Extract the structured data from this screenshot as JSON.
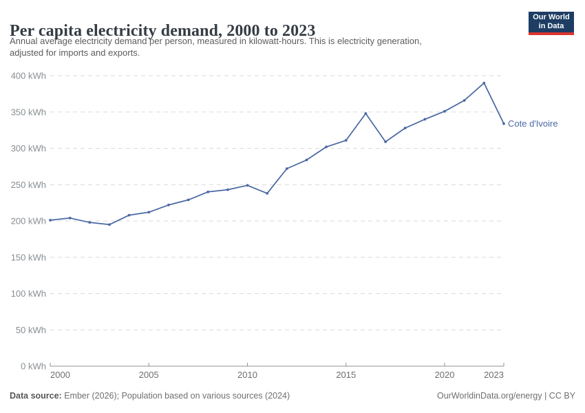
{
  "header": {
    "title": "Per capita electricity demand, 2000 to 2023",
    "subtitle_lines": [
      "Annual average electricity demand per person, measured in kilowatt-hours. This is electricity generation,",
      "adjusted for imports and exports."
    ],
    "logo": {
      "line1": "Our World",
      "line2": "in Data",
      "bg_color": "#1d3d63",
      "accent_color": "#dc3530"
    }
  },
  "chart_data": {
    "type": "line",
    "title": "Per capita electricity demand, 2000 to 2023",
    "xlabel": "",
    "ylabel": "",
    "unit": "kWh",
    "xlim": [
      2000,
      2023
    ],
    "ylim": [
      0,
      400
    ],
    "xticks": [
      2000,
      2005,
      2010,
      2015,
      2020,
      2023
    ],
    "yticks": [
      0,
      50,
      100,
      150,
      200,
      250,
      300,
      350,
      400
    ],
    "ytick_suffix": " kWh",
    "grid": "horizontal-dashed",
    "legend_position": "end-of-line-label",
    "series": [
      {
        "name": "Cote d'Ivoire",
        "color": "#4a68a3",
        "x": [
          2000,
          2001,
          2002,
          2003,
          2004,
          2005,
          2006,
          2007,
          2008,
          2009,
          2010,
          2011,
          2012,
          2013,
          2014,
          2015,
          2016,
          2017,
          2018,
          2019,
          2020,
          2021,
          2022,
          2023
        ],
        "values": [
          201,
          204,
          198,
          195,
          208,
          212,
          222,
          229,
          240,
          243,
          249,
          238,
          272,
          284,
          302,
          311,
          348,
          309,
          328,
          340,
          351,
          366,
          390,
          334
        ]
      }
    ],
    "style": {
      "gridline_color": "#dadada",
      "axis_color": "#919191",
      "ytick_label_color": "#888e93",
      "xtick_label_color": "#6e6e6e"
    }
  },
  "footer": {
    "source_label": "Data source:",
    "source_text": " Ember (2026); Population based on various sources (2024)",
    "link_text": "OurWorldinData.org/energy | CC BY"
  }
}
